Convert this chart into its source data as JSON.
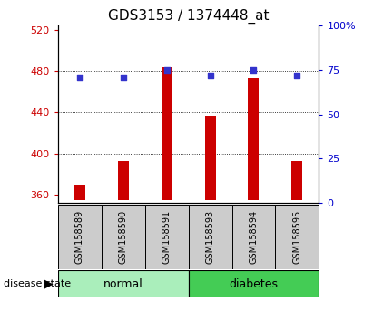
{
  "title": "GDS3153 / 1374448_at",
  "samples": [
    "GSM158589",
    "GSM158590",
    "GSM158591",
    "GSM158593",
    "GSM158594",
    "GSM158595"
  ],
  "bar_values": [
    370,
    393,
    484,
    437,
    473,
    393
  ],
  "bar_base": 355,
  "percentile_values": [
    71,
    71,
    75,
    72,
    75,
    72
  ],
  "ylim_left": [
    352,
    524
  ],
  "ylim_right": [
    0,
    100
  ],
  "left_ticks": [
    360,
    400,
    440,
    480,
    520
  ],
  "right_ticks": [
    0,
    25,
    50,
    75,
    100
  ],
  "bar_color": "#cc0000",
  "dot_color": "#3333cc",
  "normal_color": "#aaeebb",
  "diabetes_color": "#44cc55",
  "label_color_left": "#cc0000",
  "label_color_right": "#0000cc",
  "grid_lines": [
    400,
    440,
    480
  ],
  "background_color": "#ffffff",
  "tick_area_color": "#cccccc"
}
